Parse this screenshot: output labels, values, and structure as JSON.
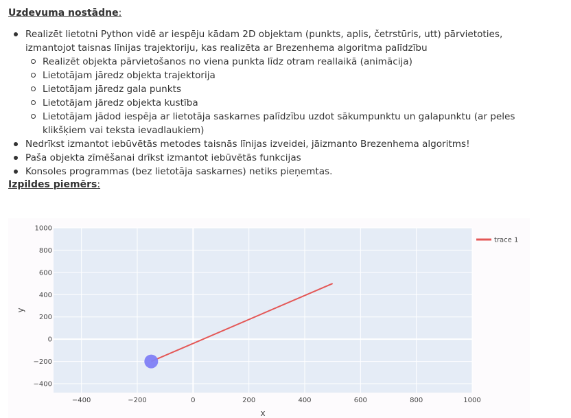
{
  "task": {
    "heading": "Uzdevuma nostādne",
    "heading_suffix": ":",
    "items": [
      {
        "text": "Realizēt lietotni Python vidē ar  iespēju kādam 2D objektam (punkts, aplis, četrstūris, utt) pārvietoties, izmantojot taisnas līnijas trajektoriju, kas realizēta ar Brezenhema algoritma palīdzību",
        "subitems": [
          "Realizēt objekta pārvietošanos no viena punkta līdz otram reallaikā (animācija)",
          "Lietotājam jāredz objekta trajektorija",
          "Lietotājam jāredz gala punkts",
          "Lietotājam jāredz objekta kustība",
          "Lietotājam jādod iespēja ar lietotāja saskarnes palīdzību uzdot sākumpunktu un galapunktu (ar peles klikšķiem vai teksta ievadlaukiem)"
        ]
      },
      {
        "text": "Nedrīkst izmantot iebūvētās metodes taisnās līnijas izveidei, jāizmanto Brezenhema algoritms!"
      },
      {
        "text": "Paša objekta zīmēšanai drīkst izmantot iebūvētās funkcijas"
      },
      {
        "text": "Konsoles programmas (bez lietotāja saskarnes) netiks pieņemtas."
      }
    ]
  },
  "example": {
    "heading": "Izpildes piemērs",
    "heading_suffix": ":"
  },
  "chart_data": {
    "type": "line",
    "title": "",
    "xlabel": "x",
    "ylabel": "y",
    "xlim": [
      -500,
      1000
    ],
    "ylim": [
      -480,
      1000
    ],
    "x_ticks": [
      -400,
      -200,
      0,
      200,
      400,
      600,
      800,
      1000
    ],
    "y_ticks": [
      -400,
      -200,
      0,
      200,
      400,
      600,
      800,
      1000
    ],
    "grid": true,
    "legend": "top-right",
    "series": [
      {
        "name": "trace 1",
        "color": "#e45756",
        "x": [
          -150,
          500
        ],
        "y": [
          -200,
          500
        ]
      }
    ],
    "marker": {
      "x": -150,
      "y": -200,
      "color": "#7f7ff5"
    },
    "plot_bg": "#e5ecf6"
  }
}
